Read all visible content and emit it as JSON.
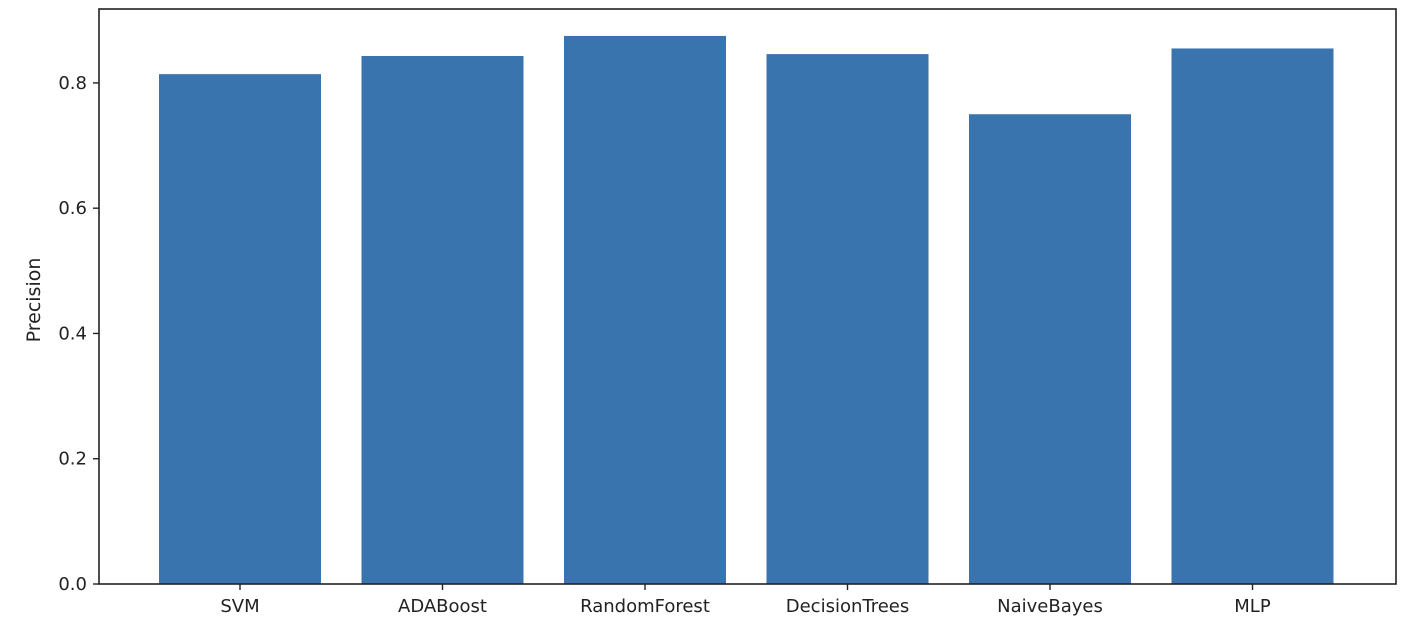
{
  "chart_data": {
    "type": "bar",
    "categories": [
      "SVM",
      "ADABoost",
      "RandomForest",
      "DecisionTrees",
      "NaiveBayes",
      "MLP"
    ],
    "values": [
      0.814,
      0.843,
      0.875,
      0.846,
      0.75,
      0.855
    ],
    "title": "",
    "xlabel": "",
    "ylabel": "Precision",
    "ylim": [
      0,
      0.918
    ],
    "yticks": [
      0.0,
      0.2,
      0.4,
      0.6,
      0.8
    ],
    "ytick_labels": [
      "0.0",
      "0.2",
      "0.4",
      "0.6",
      "0.8"
    ],
    "grid": false,
    "bar_color": "#3a74ae",
    "axis_color": "#222222"
  }
}
